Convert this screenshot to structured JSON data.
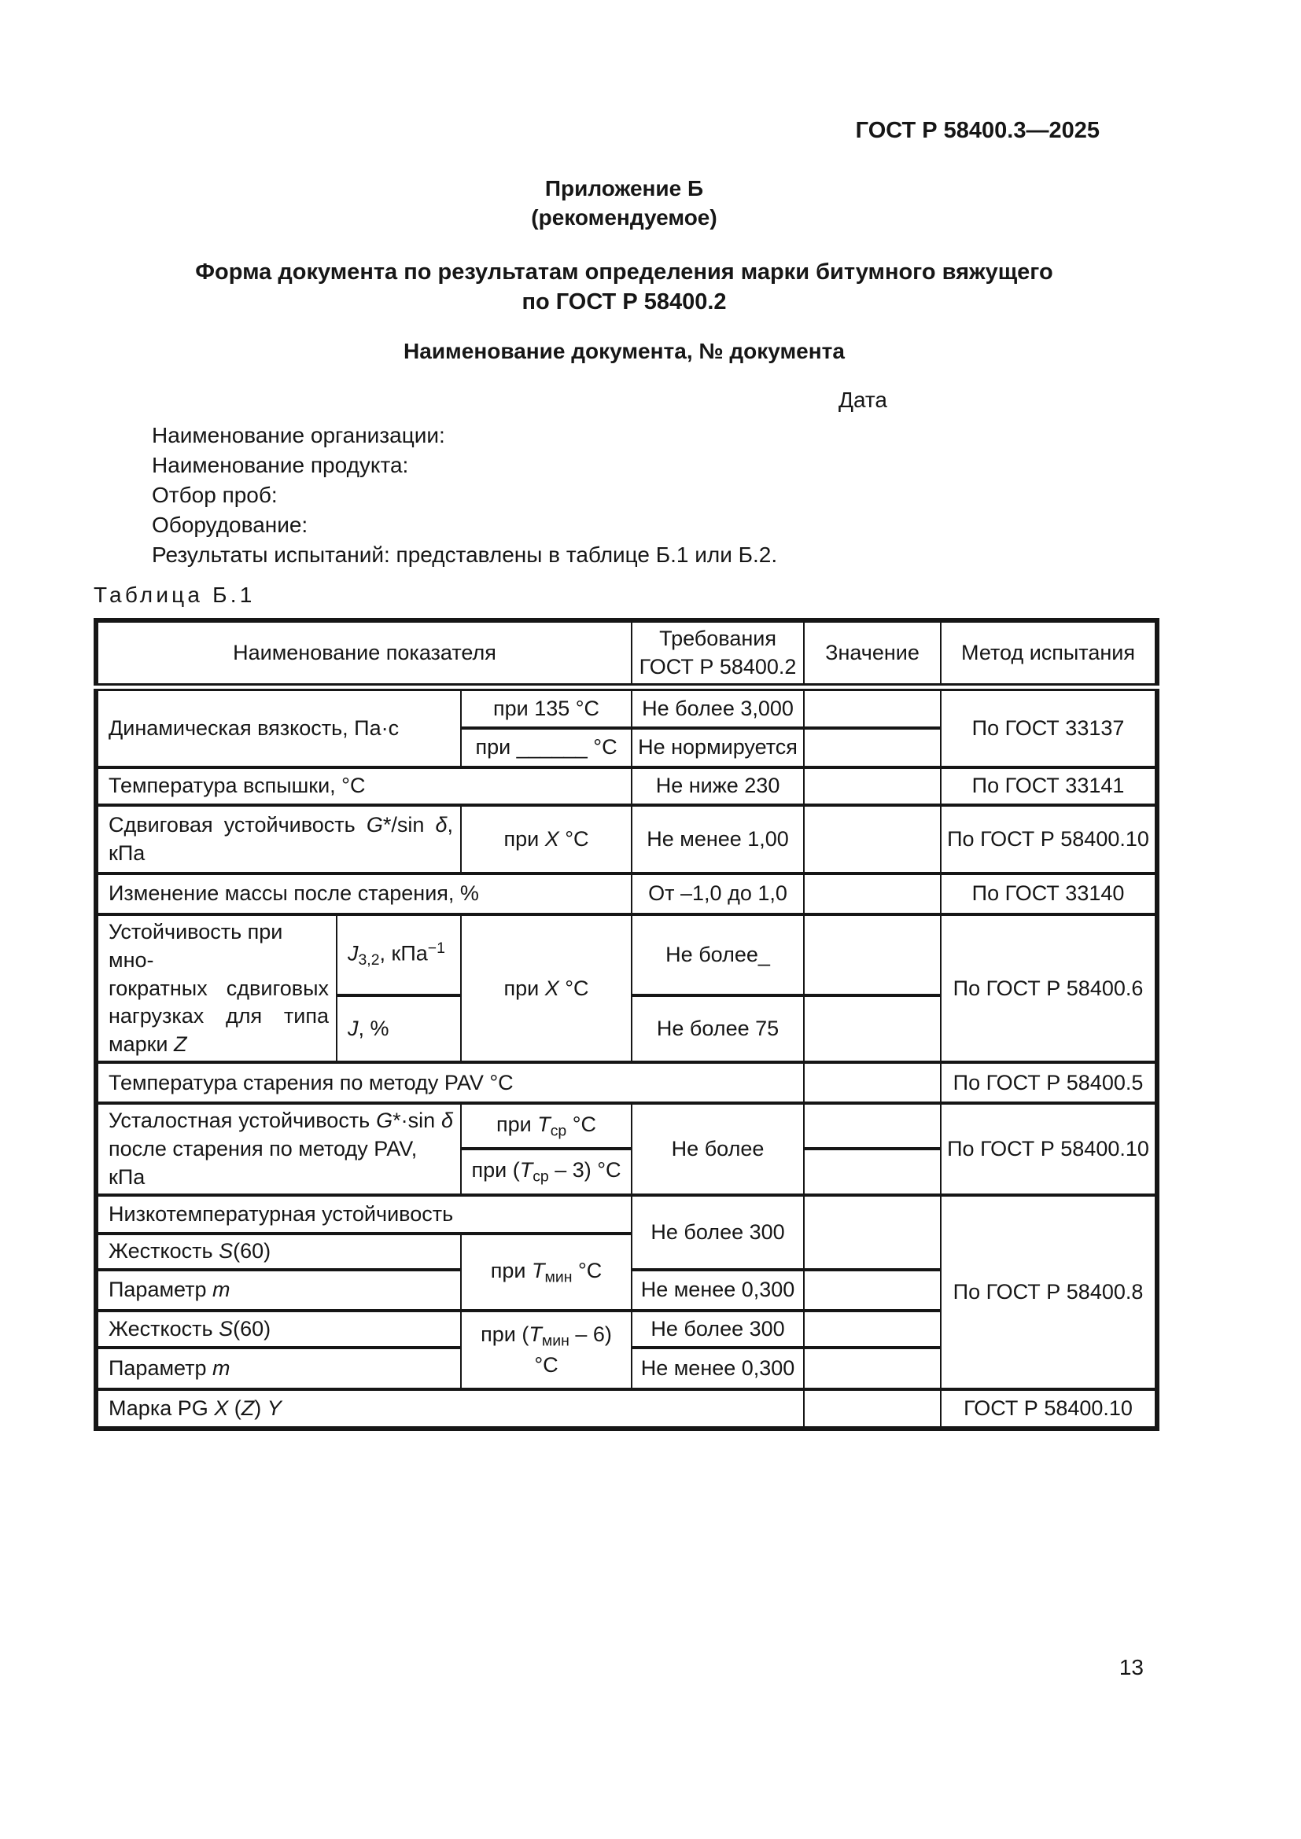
{
  "page": {
    "standard_ref": "ГОСТ Р 58400.3—2025",
    "page_number": "13"
  },
  "appendix": {
    "label": "Приложение Б",
    "kind": "(рекомендуемое)",
    "title": "Форма документа по результатам определения марки битумного вяжущего\nпо ГОСТ  Р 58400.2",
    "doc_heading": "Наименование документа, № документа",
    "date_label": "Дата",
    "fields": [
      "Наименование организации:",
      "Наименование продукта:",
      "Отбор проб:",
      "Оборудование:",
      "Результаты испытаний: представлены в таблице Б.1 или Б.2."
    ]
  },
  "table": {
    "caption": "Таблица Б.1",
    "headers": {
      "name": "Наименование показателя",
      "requirement": "Требования\nГОСТ Р 58400.2",
      "value": "Значение",
      "method": "Метод испытания"
    },
    "rows": {
      "r1_name": "Динамическая вязкость, Па·с",
      "r1a_cond": "при 135  °С",
      "r1a_req": "Не более 3,000",
      "r1b_cond": "при ______ °С",
      "r1b_req": "Не нормируется",
      "r1_method": "По ГОСТ 33137",
      "r2_name": "Температура вспышки, °С",
      "r2_req": "Не ниже 230",
      "r2_method": "По ГОСТ 33141",
      "r3_name": "Сдвиговая  устойчивость  [i]G[/i]*/sin [i]δ[/i],\nкПа",
      "r3_cond": "при [i]X[/i] °С",
      "r3_req": "Не менее 1,00",
      "r3_method": "По ГОСТ Р 58400.10",
      "r4_name": "Изменение массы после старения, %",
      "r4_req": "От –1,0 до 1,0",
      "r4_method": "По ГОСТ  33140",
      "r5_name": "Устойчивость при мно-\nгократных сдвиговых\nнагрузках для типа\nмарки [i]Z[/i]",
      "r5a_param": "[i]J[/i][sub]3,2[/sub], кПа[sup]−1[/sup]",
      "r5b_param": "[i]J[/i], %",
      "r5_cond": "при [i]X[/i] °С",
      "r5a_req": "Не более_",
      "r5b_req": "Не более 75",
      "r5_method": "По ГОСТ Р 58400.6",
      "r6_name": "Температура старения по методу PAV °С",
      "r6_method": "По ГОСТ Р 58400.5",
      "r7_name": "Усталостная  устойчивость  [i]G[/i]*·sin [i]δ[/i]\nпосле старения по методу PAV, кПа",
      "r7a_cond": "при [i]T[/i][sub]ср[/sub]  °С",
      "r7b_cond": "при ([i]T[/i][sub]ср[/sub] – 3)  °С",
      "r7_req": "Не более",
      "r7_method": "По ГОСТ Р 58400.10",
      "r8_name": "Низкотемпературная устойчивость",
      "r8_req": "Не более 300",
      "r8_method": "По ГОСТ Р 58400.8",
      "r9_name": "Жесткость [i]S[/i](60)",
      "r9_cond": "при [i]T[/i][sub]мин[/sub]  °С",
      "r10_name": "Параметр [i]m[/i]",
      "r10_req": "Не менее 0,300",
      "r11_name": "Жесткость [i]S[/i](60)",
      "r11_cond": "при ([i]T[/i][sub]мин[/sub] – 6)  °С",
      "r11_req": "Не более 300",
      "r12_name": "Параметр [i]m[/i]",
      "r12_req": "Не менее 0,300",
      "r13_name": "Марка PG [i]X[/i] ([i]Z[/i]) [i]Y[/i]",
      "r13_method": "ГОСТ Р 58400.10"
    }
  }
}
